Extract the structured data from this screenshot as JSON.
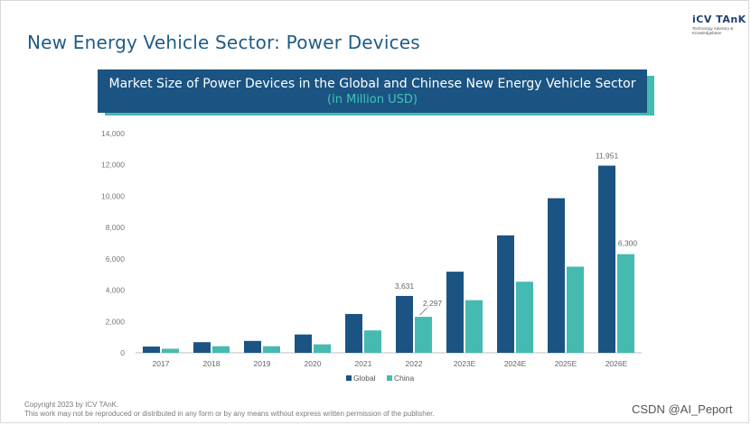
{
  "page": {
    "title": "New Energy Vehicle Sector: Power Devices",
    "logo_mark": "iCV TAnK",
    "logo_sub": "Technology Advisory & Knowledgebase"
  },
  "banner": {
    "title": "Market Size of Power Devices in the Global and Chinese New Energy Vehicle Sector",
    "subtitle": "(in Million USD)"
  },
  "footer": {
    "copyright": "Copyright  2023 by ICV TAnK.",
    "notice": "This work may not be reproduced or distributed in any form or by any means without express written permission of the publisher."
  },
  "watermark": "CSDN @AI_Peport",
  "chart_data": {
    "type": "bar",
    "categories": [
      "2017",
      "2018",
      "2019",
      "2020",
      "2021",
      "2022",
      "2023E",
      "2024E",
      "2025E",
      "2026E"
    ],
    "series": [
      {
        "name": "Global",
        "color": "#1b5483",
        "values": [
          400,
          680,
          760,
          1170,
          2480,
          3631,
          5180,
          7500,
          9870,
          11951
        ]
      },
      {
        "name": "China",
        "color": "#45bab0",
        "values": [
          260,
          420,
          420,
          540,
          1430,
          2297,
          3360,
          4540,
          5500,
          6300
        ]
      }
    ],
    "data_labels": [
      {
        "series": 0,
        "index": 5,
        "text": "3,631"
      },
      {
        "series": 1,
        "index": 5,
        "text": "2,297"
      },
      {
        "series": 0,
        "index": 9,
        "text": "11,951"
      },
      {
        "series": 1,
        "index": 9,
        "text": "6,300"
      }
    ],
    "ylim": [
      0,
      14000
    ],
    "yticks": [
      0,
      2000,
      4000,
      6000,
      8000,
      10000,
      12000,
      14000
    ],
    "ytick_labels": [
      "0",
      "2,000",
      "4,000",
      "6,000",
      "8,000",
      "10,000",
      "12,000",
      "14,000"
    ],
    "grid": false,
    "legend": "bottom-center"
  }
}
